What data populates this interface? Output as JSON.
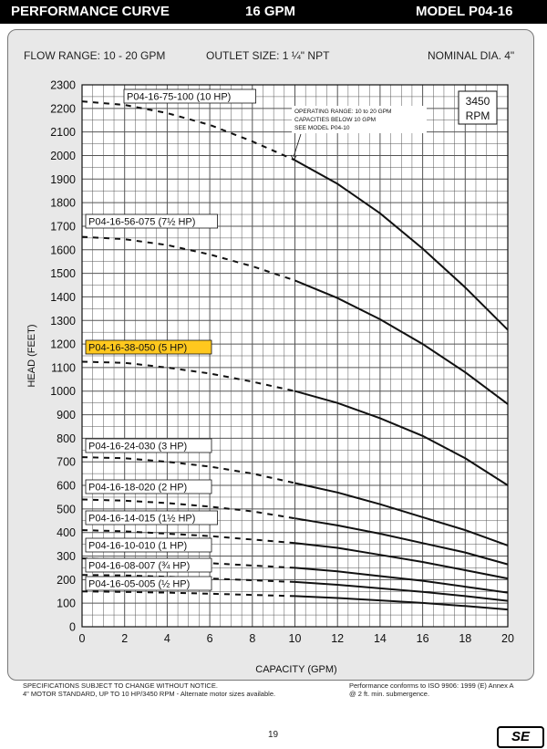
{
  "header": {
    "left": "PERFORMANCE CURVE",
    "center": "16 GPM",
    "right": "MODEL  P04-16"
  },
  "info": {
    "flow_range": "FLOW RANGE: 10 - 20 GPM",
    "outlet_size": "OUTLET SIZE: 1 ¼\" NPT",
    "nominal_dia": "NOMINAL DIA. 4\""
  },
  "rpm": {
    "line1": "3450",
    "line2": "RPM"
  },
  "operating_note": [
    "OPERATING RANGE: 10 to 20 GPM",
    "CAPACITIES BELOW 10 GPM",
    "SEE MODEL  P04-10"
  ],
  "footer": {
    "left_line1": "SPECIFICATIONS SUBJECT TO CHANGE WITHOUT NOTICE.",
    "left_line2": "4\" MOTOR STANDARD, UP TO 10 HP/3450 RPM - Alternate motor sizes available.",
    "right_line1": "Performance conforms to ISO 9906: 1999 (E) Annex A",
    "right_line2": "@ 2 ft. min. submergence."
  },
  "page_number": "19",
  "logo_text": "SE",
  "colors": {
    "highlight": "#ffc81e",
    "panel": "#e8e8e8",
    "grid": "#555555",
    "curve": "#111111"
  },
  "chart_data": {
    "type": "line",
    "xlabel": "CAPACITY (GPM)",
    "ylabel": "HEAD (FEET)",
    "xlim": [
      0,
      20
    ],
    "ylim": [
      0,
      2300
    ],
    "xticks": [
      "0",
      "2",
      "4",
      "6",
      "8",
      "10",
      "12",
      "14",
      "16",
      "18",
      "20"
    ],
    "yticks": [
      "0",
      "100",
      "200",
      "300",
      "400",
      "500",
      "600",
      "700",
      "800",
      "900",
      "1000",
      "1100",
      "1200",
      "1300",
      "1400",
      "1500",
      "1600",
      "1700",
      "1800",
      "1900",
      "2000",
      "2100",
      "2200",
      "2300"
    ],
    "grid": true,
    "operating_range": [
      10,
      20
    ],
    "series": [
      {
        "name": "P04-16-75-100 (10 HP)",
        "x": [
          0,
          2,
          4,
          6,
          8,
          10,
          12,
          14,
          16,
          18,
          20
        ],
        "y": [
          2230,
          2215,
          2180,
          2130,
          2060,
          1980,
          1880,
          1755,
          1605,
          1440,
          1260
        ]
      },
      {
        "name": "P04-16-56-075 (7½ HP)",
        "x": [
          0,
          2,
          4,
          6,
          8,
          10,
          12,
          14,
          16,
          18,
          20
        ],
        "y": [
          1655,
          1645,
          1620,
          1580,
          1530,
          1470,
          1395,
          1305,
          1200,
          1080,
          945
        ]
      },
      {
        "name": "P04-16-38-050 (5 HP)",
        "highlight": true,
        "x": [
          0,
          2,
          4,
          6,
          8,
          10,
          12,
          14,
          16,
          18,
          20
        ],
        "y": [
          1125,
          1120,
          1100,
          1075,
          1040,
          1000,
          950,
          885,
          810,
          715,
          600
        ]
      },
      {
        "name": "P04-16-24-030 (3 HP)",
        "x": [
          0,
          2,
          4,
          6,
          8,
          10,
          12,
          14,
          16,
          18,
          20
        ],
        "y": [
          720,
          715,
          700,
          680,
          650,
          610,
          570,
          520,
          465,
          410,
          345
        ]
      },
      {
        "name": "P04-16-18-020 (2 HP)",
        "x": [
          0,
          2,
          4,
          6,
          8,
          10,
          12,
          14,
          16,
          18,
          20
        ],
        "y": [
          540,
          535,
          525,
          510,
          490,
          460,
          430,
          395,
          355,
          315,
          265
        ]
      },
      {
        "name": "P04-16-14-015 (1½ HP)",
        "x": [
          0,
          2,
          4,
          6,
          8,
          10,
          12,
          14,
          16,
          18,
          20
        ],
        "y": [
          410,
          405,
          395,
          385,
          370,
          355,
          335,
          305,
          275,
          240,
          205
        ]
      },
      {
        "name": "P04-16-10-010 (1 HP)",
        "x": [
          0,
          2,
          4,
          6,
          8,
          10,
          12,
          14,
          16,
          18,
          20
        ],
        "y": [
          290,
          285,
          280,
          270,
          260,
          250,
          235,
          215,
          195,
          170,
          145
        ]
      },
      {
        "name": "P04-16-08-007 (¾ HP)",
        "x": [
          0,
          2,
          4,
          6,
          8,
          10,
          12,
          14,
          16,
          18,
          20
        ],
        "y": [
          220,
          218,
          212,
          205,
          197,
          190,
          178,
          163,
          148,
          130,
          110
        ]
      },
      {
        "name": "P04-16-05-005 (½ HP)",
        "x": [
          0,
          2,
          4,
          6,
          8,
          10,
          12,
          14,
          16,
          18,
          20
        ],
        "y": [
          150,
          148,
          145,
          140,
          135,
          130,
          122,
          112,
          101,
          88,
          73
        ]
      }
    ]
  }
}
